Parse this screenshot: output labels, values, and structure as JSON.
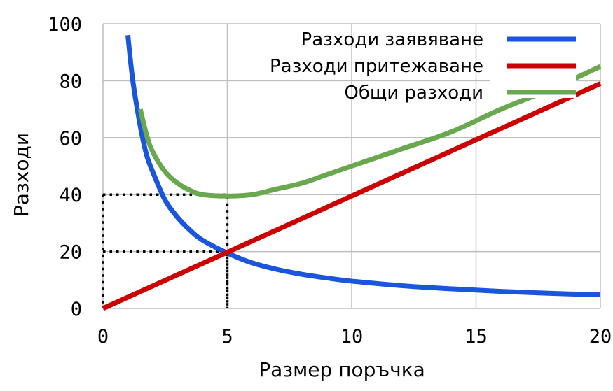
{
  "chart_data": {
    "type": "line",
    "title": "",
    "xlabel": "Размер поръчка",
    "ylabel": "Разходи",
    "xlim": [
      0,
      20
    ],
    "ylim": [
      0,
      100
    ],
    "xticks": [
      "0",
      "5",
      "10",
      "15",
      "20"
    ],
    "yticks": [
      "0",
      "20",
      "40",
      "60",
      "80",
      "100"
    ],
    "grid": true,
    "legend_position": "top-right",
    "series": [
      {
        "name": "Разходи заявяване",
        "color": "#1a56db",
        "x": [
          1,
          1.2,
          1.5,
          1.75,
          2,
          2.5,
          3,
          3.5,
          4,
          5,
          6,
          7,
          8,
          9,
          10,
          12,
          14,
          16,
          18,
          20
        ],
        "y": [
          96,
          80,
          64,
          54,
          48,
          38,
          32,
          27.5,
          24,
          19.5,
          16,
          13.7,
          12,
          10.7,
          9.6,
          8,
          6.9,
          6,
          5.3,
          4.8
        ]
      },
      {
        "name": "Разходи притежаване",
        "color": "#cc0000",
        "x": [
          0,
          20
        ],
        "y": [
          0,
          79
        ]
      },
      {
        "name": "Общи разходи",
        "color": "#6aa84f",
        "x": [
          1.5,
          1.75,
          2,
          2.5,
          3,
          3.5,
          4,
          5,
          6,
          7,
          8,
          9,
          10,
          12,
          14,
          16,
          18,
          20
        ],
        "y": [
          70,
          61,
          55,
          48,
          44,
          41.5,
          40,
          39.5,
          40,
          42,
          44,
          47,
          50,
          56,
          62,
          70,
          77,
          85
        ]
      }
    ],
    "annotations": [
      {
        "type": "dotted-guide",
        "x": 5,
        "y": 20
      },
      {
        "type": "dotted-guide",
        "x": 5,
        "y": 40
      }
    ]
  }
}
